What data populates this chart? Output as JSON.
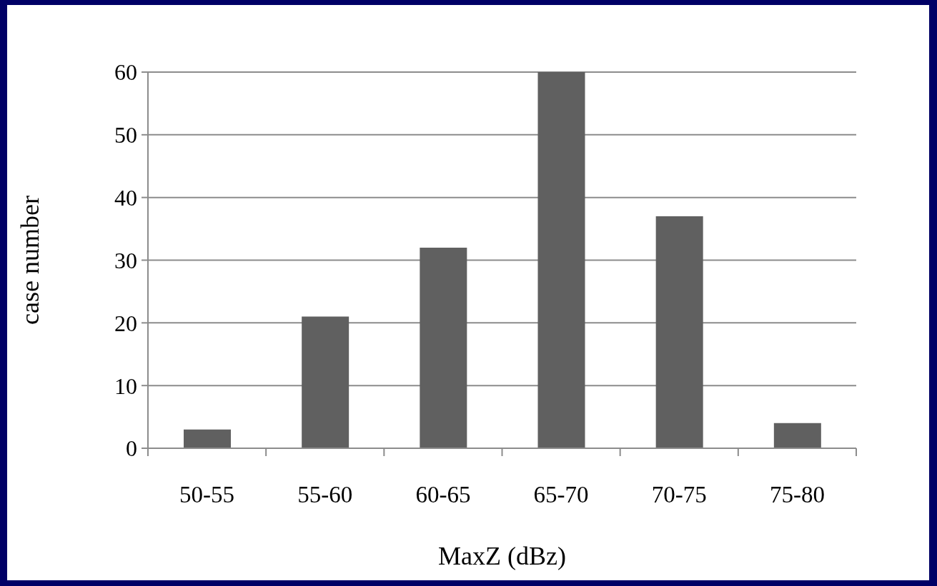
{
  "chart_data": {
    "type": "bar",
    "xlabel": "MaxZ (dBz)",
    "ylabel": "case number",
    "categories": [
      "50-55",
      "55-60",
      "60-65",
      "65-70",
      "70-75",
      "75-80"
    ],
    "values": [
      3,
      21,
      32,
      60,
      37,
      4
    ],
    "color": "#606060",
    "ylim": [
      0,
      60
    ],
    "yticks": [
      0,
      10,
      20,
      30,
      40,
      50,
      60
    ],
    "grid": "y"
  }
}
